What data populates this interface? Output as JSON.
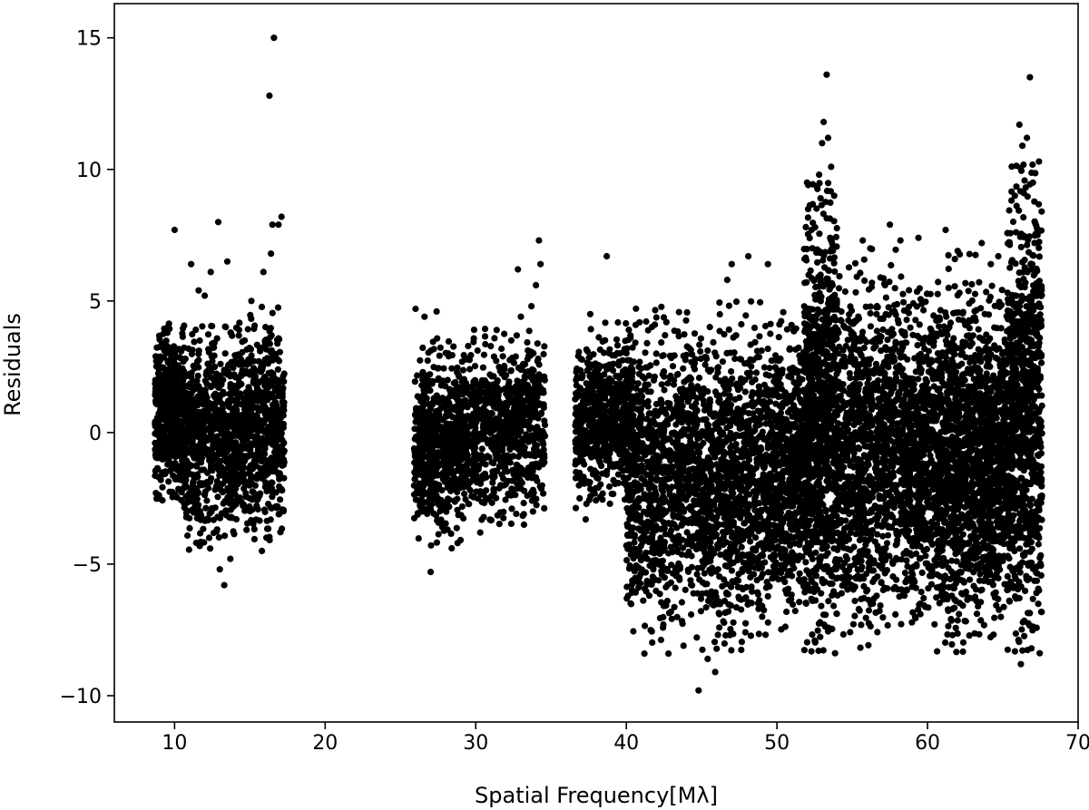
{
  "chart_data": {
    "type": "scatter",
    "title": "",
    "xlabel": "Spatial Frequency[Mλ]",
    "ylabel": "Residuals",
    "xlim": [
      6,
      70
    ],
    "ylim": [
      -11,
      16.3
    ],
    "xticks": [
      10,
      20,
      30,
      40,
      50,
      60,
      70
    ],
    "yticks": [
      -10,
      -5,
      0,
      5,
      10,
      15
    ],
    "ytick_labels": [
      "−10",
      "−5",
      "0",
      "5",
      "10",
      "15"
    ],
    "grid": false,
    "legend": "none",
    "marker_color": "#000000",
    "series": [
      {
        "clusters": [
          {
            "x": [
              8.7,
              10.6
            ],
            "y": [
              -2.8,
              4.2
            ],
            "n": 520
          },
          {
            "x": [
              10.6,
              14.2
            ],
            "y": [
              -4.6,
              4.4
            ],
            "n": 700
          },
          {
            "x": [
              14.2,
              17.3
            ],
            "y": [
              -4.2,
              4.8
            ],
            "n": 620
          },
          {
            "x": [
              25.9,
              29.2
            ],
            "y": [
              -4.3,
              3.6
            ],
            "n": 620
          },
          {
            "x": [
              29.2,
              34.6
            ],
            "y": [
              -3.6,
              4.0
            ],
            "n": 780
          },
          {
            "x": [
              36.6,
              40.5
            ],
            "y": [
              -3.0,
              4.2
            ],
            "n": 650
          },
          {
            "x": [
              40.0,
              45.0
            ],
            "y": [
              -8.0,
              4.8
            ],
            "n": 1000
          },
          {
            "x": [
              45.0,
              49.5
            ],
            "y": [
              -8.5,
              5.0
            ],
            "n": 1000
          },
          {
            "x": [
              49.5,
              51.8
            ],
            "y": [
              -7.5,
              5.0
            ],
            "n": 600
          },
          {
            "x": [
              51.8,
              54.0
            ],
            "y": [
              -8.6,
              9.5
            ],
            "n": 1000
          },
          {
            "x": [
              54.0,
              58.5
            ],
            "y": [
              -8.2,
              7.0
            ],
            "n": 1150
          },
          {
            "x": [
              58.5,
              60.6
            ],
            "y": [
              -7.5,
              5.5
            ],
            "n": 600
          },
          {
            "x": [
              60.6,
              63.6
            ],
            "y": [
              -8.6,
              6.8
            ],
            "n": 1000
          },
          {
            "x": [
              63.6,
              65.3
            ],
            "y": [
              -7.8,
              6.0
            ],
            "n": 550
          },
          {
            "x": [
              65.3,
              67.6
            ],
            "y": [
              -8.6,
              10.2
            ],
            "n": 900
          }
        ],
        "points": [
          [
            10.0,
            7.7
          ],
          [
            12.9,
            8.0
          ],
          [
            11.1,
            6.4
          ],
          [
            12.4,
            6.1
          ],
          [
            13.5,
            6.5
          ],
          [
            15.9,
            6.1
          ],
          [
            16.6,
            15.0
          ],
          [
            16.3,
            12.8
          ],
          [
            17.1,
            8.2
          ],
          [
            16.5,
            7.9
          ],
          [
            16.9,
            7.9
          ],
          [
            16.4,
            6.8
          ],
          [
            11.6,
            5.4
          ],
          [
            12.0,
            5.2
          ],
          [
            15.1,
            5.0
          ],
          [
            13.3,
            -5.8
          ],
          [
            13.0,
            -5.2
          ],
          [
            13.7,
            -4.8
          ],
          [
            12.3,
            -4.0
          ],
          [
            15.8,
            -4.5
          ],
          [
            16.2,
            -4.0
          ],
          [
            26.0,
            4.7
          ],
          [
            26.6,
            4.4
          ],
          [
            27.4,
            4.6
          ],
          [
            27.0,
            -5.3
          ],
          [
            28.4,
            -4.4
          ],
          [
            28.8,
            -4.2
          ],
          [
            33.0,
            4.4
          ],
          [
            32.8,
            6.2
          ],
          [
            34.2,
            7.3
          ],
          [
            34.3,
            6.4
          ],
          [
            34.0,
            5.6
          ],
          [
            33.7,
            4.8
          ],
          [
            30.3,
            -3.8
          ],
          [
            33.2,
            -3.5
          ],
          [
            33.8,
            -3.0
          ],
          [
            37.6,
            4.5
          ],
          [
            38.7,
            6.7
          ],
          [
            36.9,
            -2.5
          ],
          [
            37.3,
            -3.3
          ],
          [
            41.2,
            -8.4
          ],
          [
            42.8,
            -8.4
          ],
          [
            43.8,
            -8.1
          ],
          [
            44.8,
            -9.8
          ],
          [
            45.9,
            -9.1
          ],
          [
            45.4,
            -8.6
          ],
          [
            47.0,
            6.4
          ],
          [
            48.1,
            6.7
          ],
          [
            46.7,
            5.8
          ],
          [
            49.4,
            6.4
          ],
          [
            52.0,
            9.5
          ],
          [
            52.3,
            7.7
          ],
          [
            52.8,
            9.8
          ],
          [
            53.1,
            11.8
          ],
          [
            53.3,
            13.6
          ],
          [
            53.0,
            11.0
          ],
          [
            53.6,
            10.1
          ],
          [
            53.4,
            11.2
          ],
          [
            53.8,
            9.0
          ],
          [
            55.7,
            7.3
          ],
          [
            57.5,
            7.9
          ],
          [
            58.2,
            7.3
          ],
          [
            59.4,
            7.4
          ],
          [
            56.2,
            7.0
          ],
          [
            61.2,
            7.7
          ],
          [
            62.0,
            6.9
          ],
          [
            63.6,
            7.2
          ],
          [
            64.2,
            6.4
          ],
          [
            64.7,
            6.7
          ],
          [
            65.8,
            9.0
          ],
          [
            66.1,
            11.7
          ],
          [
            66.3,
            10.9
          ],
          [
            66.8,
            13.5
          ],
          [
            66.6,
            11.2
          ],
          [
            67.4,
            10.3
          ],
          [
            67.0,
            9.5
          ],
          [
            66.4,
            9.1
          ],
          [
            66.2,
            -8.8
          ],
          [
            66.9,
            -8.2
          ],
          [
            67.4,
            -6.0
          ],
          [
            67.4,
            -4.0
          ],
          [
            67.6,
            -2.4
          ]
        ]
      }
    ]
  }
}
